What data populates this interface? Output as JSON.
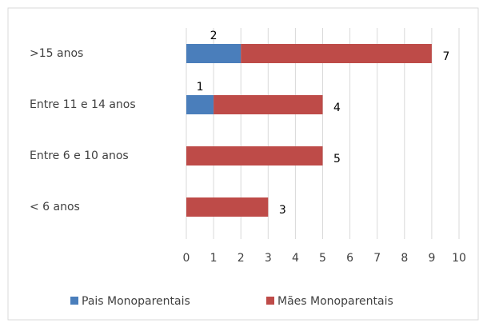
{
  "chart_data": {
    "type": "stacked-barh",
    "categories": [
      ">15 anos",
      "Entre 11 e 14 anos",
      "Entre 6 e 10 anos",
      "< 6 anos"
    ],
    "series": [
      {
        "name": "Pais Monoparentais",
        "color": "#4a7ebb",
        "values": [
          2,
          1,
          null,
          null
        ]
      },
      {
        "name": "Mães Monoparentais",
        "color": "#be4b48",
        "values": [
          7,
          4,
          5,
          3
        ]
      }
    ],
    "xlim": [
      0,
      10
    ],
    "xticks": [
      0,
      1,
      2,
      3,
      4,
      5,
      6,
      7,
      8,
      9,
      10
    ],
    "grid": true,
    "legend": "bottom"
  }
}
